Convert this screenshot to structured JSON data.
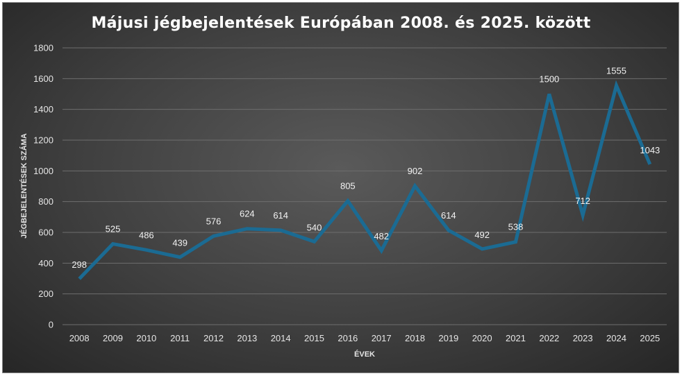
{
  "chart_data": {
    "type": "line",
    "title": "Májusi jégbejelentések Európában 2008. és 2025. között",
    "xlabel": "ÉVEK",
    "ylabel": "JÉGBEJELENTÉSEK SZÁMA",
    "categories": [
      "2008",
      "2009",
      "2010",
      "2011",
      "2012",
      "2013",
      "2014",
      "2015",
      "2016",
      "2017",
      "2018",
      "2019",
      "2020",
      "2021",
      "2022",
      "2023",
      "2024",
      "2025"
    ],
    "series": [
      {
        "values": [
          298,
          525,
          486,
          439,
          576,
          624,
          614,
          540,
          805,
          482,
          902,
          614,
          492,
          538,
          1500,
          712,
          1555,
          1043
        ]
      }
    ],
    "ylim": [
      0,
      1800
    ],
    "yticks": [
      0,
      200,
      400,
      600,
      800,
      1000,
      1200,
      1400,
      1600,
      1800
    ],
    "grid": true,
    "legend": "none",
    "line_color": "#1b6b93"
  }
}
